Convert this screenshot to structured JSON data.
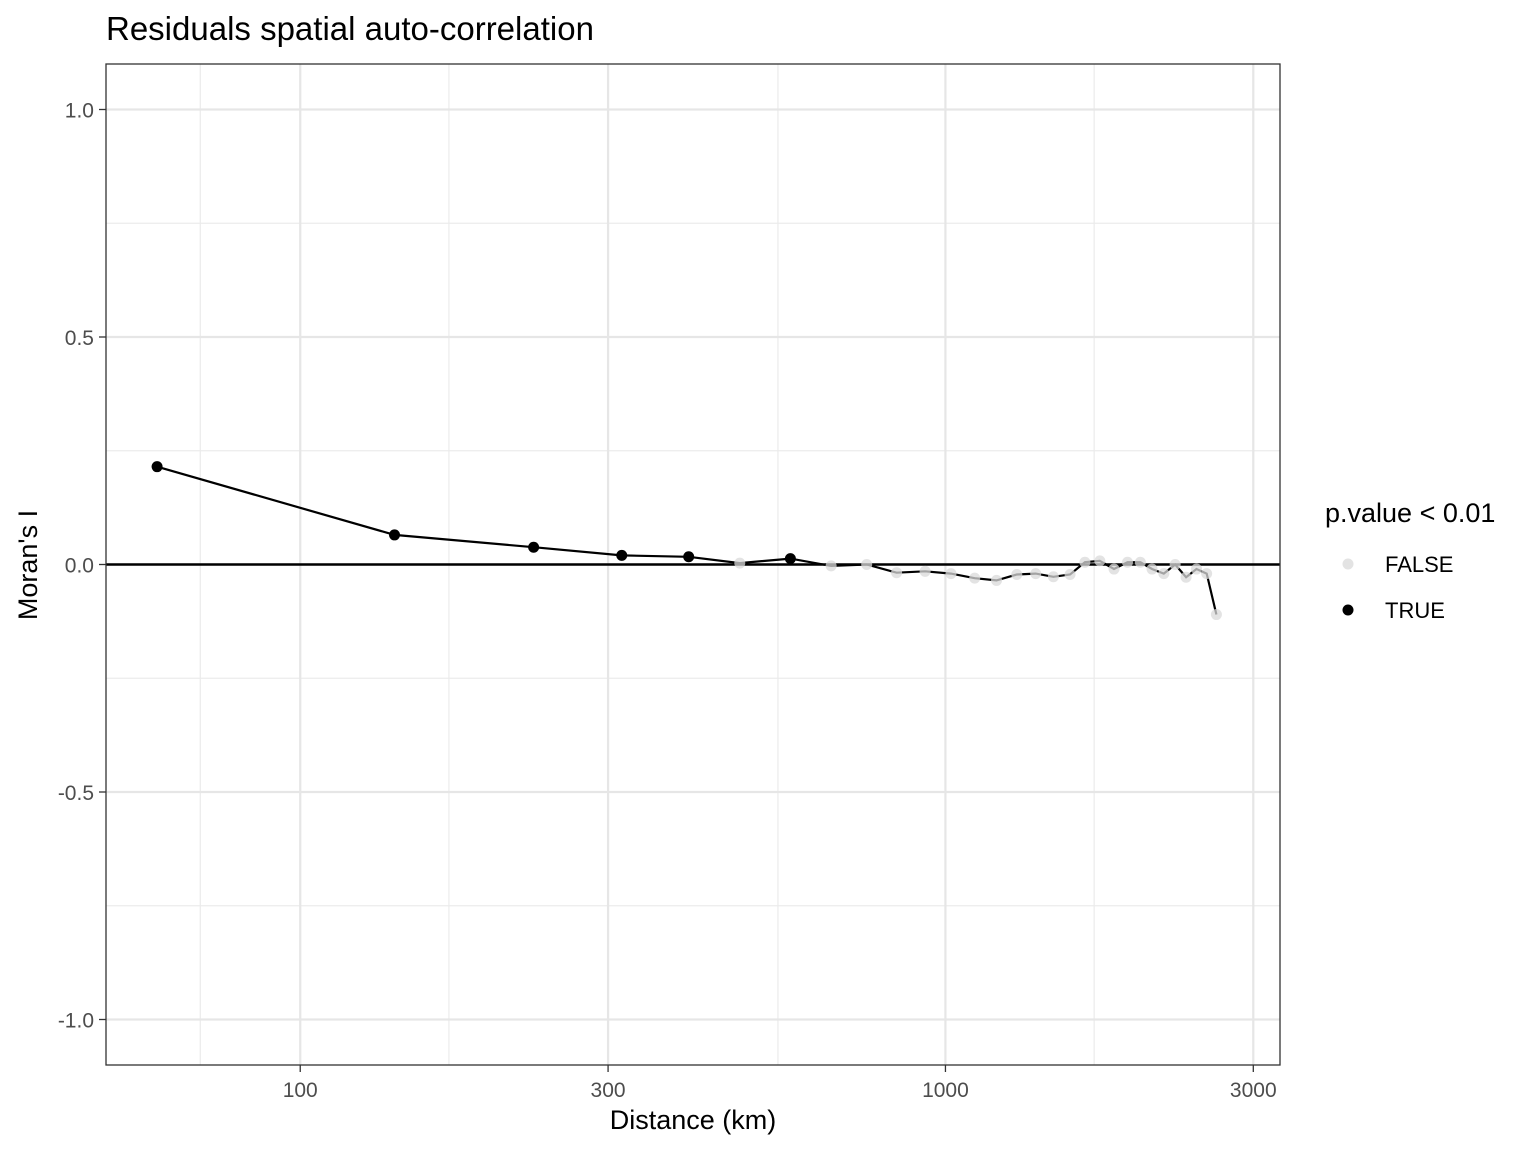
{
  "chart_data": {
    "type": "scatter",
    "title": "Residuals spatial auto-correlation",
    "xlabel": "Distance (km)",
    "ylabel": "Moran's I",
    "x_scale": "log10",
    "xlim": [
      50,
      3300
    ],
    "ylim": [
      -1.1,
      1.1
    ],
    "x_ticks": [
      100,
      300,
      1000,
      3000
    ],
    "x_tick_labels": [
      "100",
      "300",
      "1000",
      "3000"
    ],
    "y_ticks": [
      -1.0,
      -0.5,
      0.0,
      0.5,
      1.0
    ],
    "y_tick_labels": [
      "-1.0",
      "-0.5",
      "0.0",
      "0.5",
      "1.0"
    ],
    "x_minor": [
      70,
      170,
      550,
      1700
    ],
    "y_minor": [
      -0.75,
      -0.25,
      0.25,
      0.75
    ],
    "reference_line_y": 0,
    "grid": true,
    "legend": {
      "title": "p.value < 0.01",
      "placement": "right",
      "entries": [
        {
          "label": "FALSE",
          "color": "#d9d9d9"
        },
        {
          "label": "TRUE",
          "color": "#000000"
        }
      ]
    },
    "series_color_line": "#000000",
    "points": [
      {
        "x": 60,
        "y": 0.215,
        "sig": true
      },
      {
        "x": 140,
        "y": 0.065,
        "sig": true
      },
      {
        "x": 230,
        "y": 0.038,
        "sig": true
      },
      {
        "x": 315,
        "y": 0.02,
        "sig": true
      },
      {
        "x": 400,
        "y": 0.017,
        "sig": true
      },
      {
        "x": 480,
        "y": 0.003,
        "sig": false
      },
      {
        "x": 575,
        "y": 0.013,
        "sig": true
      },
      {
        "x": 665,
        "y": -0.003,
        "sig": false
      },
      {
        "x": 755,
        "y": 0.0,
        "sig": false
      },
      {
        "x": 840,
        "y": -0.018,
        "sig": false
      },
      {
        "x": 930,
        "y": -0.015,
        "sig": false
      },
      {
        "x": 1020,
        "y": -0.02,
        "sig": false
      },
      {
        "x": 1110,
        "y": -0.03,
        "sig": false
      },
      {
        "x": 1200,
        "y": -0.035,
        "sig": false
      },
      {
        "x": 1290,
        "y": -0.022,
        "sig": false
      },
      {
        "x": 1380,
        "y": -0.02,
        "sig": false
      },
      {
        "x": 1470,
        "y": -0.027,
        "sig": false
      },
      {
        "x": 1560,
        "y": -0.022,
        "sig": false
      },
      {
        "x": 1645,
        "y": 0.005,
        "sig": false
      },
      {
        "x": 1735,
        "y": 0.008,
        "sig": false
      },
      {
        "x": 1825,
        "y": -0.01,
        "sig": false
      },
      {
        "x": 1915,
        "y": 0.005,
        "sig": false
      },
      {
        "x": 2005,
        "y": 0.005,
        "sig": false
      },
      {
        "x": 2090,
        "y": -0.01,
        "sig": false
      },
      {
        "x": 2180,
        "y": -0.02,
        "sig": false
      },
      {
        "x": 2270,
        "y": 0.0,
        "sig": false
      },
      {
        "x": 2360,
        "y": -0.028,
        "sig": false
      },
      {
        "x": 2450,
        "y": -0.01,
        "sig": false
      },
      {
        "x": 2540,
        "y": -0.02,
        "sig": false
      },
      {
        "x": 2630,
        "y": -0.11,
        "sig": false
      }
    ]
  }
}
